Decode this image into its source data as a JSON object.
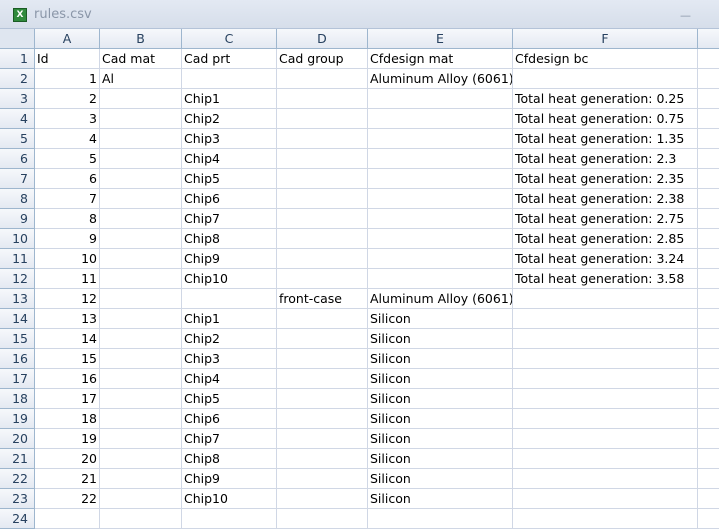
{
  "window": {
    "title": "rules.csv",
    "icon": "excel-file-icon"
  },
  "columns": [
    "A",
    "B",
    "C",
    "D",
    "E",
    "F",
    ""
  ],
  "rows": [
    [
      "Id",
      "Cad mat",
      "Cad prt",
      "Cad group",
      "Cfdesign mat",
      "Cfdesign bc"
    ],
    [
      "1",
      "Al",
      "",
      "",
      "Aluminum Alloy (6061)",
      ""
    ],
    [
      "2",
      "",
      "Chip1",
      "",
      "",
      "Total heat generation: 0.25"
    ],
    [
      "3",
      "",
      "Chip2",
      "",
      "",
      "Total heat generation: 0.75"
    ],
    [
      "4",
      "",
      "Chip3",
      "",
      "",
      "Total heat generation: 1.35"
    ],
    [
      "5",
      "",
      "Chip4",
      "",
      "",
      "Total heat generation: 2.3"
    ],
    [
      "6",
      "",
      "Chip5",
      "",
      "",
      "Total heat generation: 2.35"
    ],
    [
      "7",
      "",
      "Chip6",
      "",
      "",
      "Total heat generation: 2.38"
    ],
    [
      "8",
      "",
      "Chip7",
      "",
      "",
      "Total heat generation: 2.75"
    ],
    [
      "9",
      "",
      "Chip8",
      "",
      "",
      "Total heat generation: 2.85"
    ],
    [
      "10",
      "",
      "Chip9",
      "",
      "",
      "Total heat generation: 3.24"
    ],
    [
      "11",
      "",
      "Chip10",
      "",
      "",
      "Total heat generation: 3.58"
    ],
    [
      "12",
      "",
      "",
      "front-case",
      "Aluminum Alloy (6061)",
      ""
    ],
    [
      "13",
      "",
      "Chip1",
      "",
      "Silicon",
      ""
    ],
    [
      "14",
      "",
      "Chip2",
      "",
      "Silicon",
      ""
    ],
    [
      "15",
      "",
      "Chip3",
      "",
      "Silicon",
      ""
    ],
    [
      "16",
      "",
      "Chip4",
      "",
      "Silicon",
      ""
    ],
    [
      "17",
      "",
      "Chip5",
      "",
      "Silicon",
      ""
    ],
    [
      "18",
      "",
      "Chip6",
      "",
      "Silicon",
      ""
    ],
    [
      "19",
      "",
      "Chip7",
      "",
      "Silicon",
      ""
    ],
    [
      "20",
      "",
      "Chip8",
      "",
      "Silicon",
      ""
    ],
    [
      "21",
      "",
      "Chip9",
      "",
      "Silicon",
      ""
    ],
    [
      "22",
      "",
      "Chip10",
      "",
      "Silicon",
      ""
    ],
    [
      "",
      "",
      "",
      "",
      "",
      ""
    ]
  ]
}
